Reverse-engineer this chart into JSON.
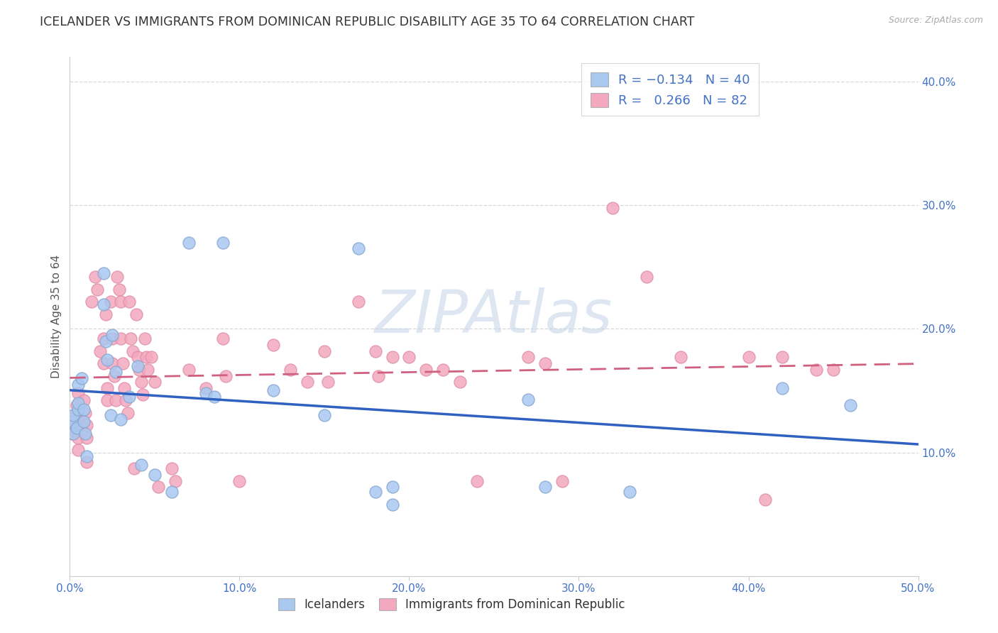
{
  "title": "ICELANDER VS IMMIGRANTS FROM DOMINICAN REPUBLIC DISABILITY AGE 35 TO 64 CORRELATION CHART",
  "source": "Source: ZipAtlas.com",
  "ylabel": "Disability Age 35 to 64",
  "xlim": [
    0.0,
    0.5
  ],
  "ylim": [
    0.0,
    0.42
  ],
  "xticks": [
    0.0,
    0.1,
    0.2,
    0.3,
    0.4,
    0.5
  ],
  "xticklabels": [
    "0.0%",
    "10.0%",
    "20.0%",
    "30.0%",
    "40.0%",
    "50.0%"
  ],
  "yticks": [
    0.0,
    0.1,
    0.2,
    0.3,
    0.4
  ],
  "yticklabels": [
    "",
    "10.0%",
    "20.0%",
    "30.0%",
    "40.0%"
  ],
  "iceland_R": -0.134,
  "iceland_N": 40,
  "domrep_R": 0.266,
  "domrep_N": 82,
  "iceland_color": "#a8c8f0",
  "domrep_color": "#f4a8c0",
  "iceland_line_color": "#3060c0",
  "domrep_line_color": "#d06080",
  "iceland_points": [
    [
      0.002,
      0.125
    ],
    [
      0.002,
      0.13
    ],
    [
      0.002,
      0.115
    ],
    [
      0.004,
      0.12
    ],
    [
      0.005,
      0.135
    ],
    [
      0.005,
      0.14
    ],
    [
      0.005,
      0.155
    ],
    [
      0.007,
      0.16
    ],
    [
      0.008,
      0.135
    ],
    [
      0.008,
      0.125
    ],
    [
      0.009,
      0.115
    ],
    [
      0.01,
      0.097
    ],
    [
      0.02,
      0.245
    ],
    [
      0.02,
      0.22
    ],
    [
      0.021,
      0.19
    ],
    [
      0.022,
      0.175
    ],
    [
      0.024,
      0.13
    ],
    [
      0.025,
      0.195
    ],
    [
      0.027,
      0.165
    ],
    [
      0.03,
      0.127
    ],
    [
      0.035,
      0.145
    ],
    [
      0.04,
      0.17
    ],
    [
      0.042,
      0.09
    ],
    [
      0.05,
      0.082
    ],
    [
      0.06,
      0.068
    ],
    [
      0.07,
      0.27
    ],
    [
      0.08,
      0.148
    ],
    [
      0.085,
      0.145
    ],
    [
      0.09,
      0.27
    ],
    [
      0.12,
      0.15
    ],
    [
      0.15,
      0.13
    ],
    [
      0.17,
      0.265
    ],
    [
      0.18,
      0.068
    ],
    [
      0.19,
      0.072
    ],
    [
      0.19,
      0.058
    ],
    [
      0.27,
      0.143
    ],
    [
      0.28,
      0.072
    ],
    [
      0.33,
      0.068
    ],
    [
      0.42,
      0.152
    ],
    [
      0.46,
      0.138
    ]
  ],
  "domrep_points": [
    [
      0.001,
      0.12
    ],
    [
      0.001,
      0.115
    ],
    [
      0.003,
      0.13
    ],
    [
      0.004,
      0.138
    ],
    [
      0.005,
      0.112
    ],
    [
      0.005,
      0.102
    ],
    [
      0.005,
      0.148
    ],
    [
      0.007,
      0.122
    ],
    [
      0.008,
      0.142
    ],
    [
      0.009,
      0.132
    ],
    [
      0.01,
      0.122
    ],
    [
      0.01,
      0.092
    ],
    [
      0.01,
      0.112
    ],
    [
      0.013,
      0.222
    ],
    [
      0.015,
      0.242
    ],
    [
      0.016,
      0.232
    ],
    [
      0.018,
      0.182
    ],
    [
      0.02,
      0.172
    ],
    [
      0.02,
      0.192
    ],
    [
      0.021,
      0.212
    ],
    [
      0.022,
      0.152
    ],
    [
      0.022,
      0.142
    ],
    [
      0.024,
      0.222
    ],
    [
      0.025,
      0.192
    ],
    [
      0.025,
      0.172
    ],
    [
      0.026,
      0.162
    ],
    [
      0.027,
      0.142
    ],
    [
      0.028,
      0.242
    ],
    [
      0.029,
      0.232
    ],
    [
      0.03,
      0.222
    ],
    [
      0.03,
      0.192
    ],
    [
      0.031,
      0.172
    ],
    [
      0.032,
      0.152
    ],
    [
      0.033,
      0.142
    ],
    [
      0.034,
      0.132
    ],
    [
      0.035,
      0.222
    ],
    [
      0.036,
      0.192
    ],
    [
      0.037,
      0.182
    ],
    [
      0.038,
      0.087
    ],
    [
      0.039,
      0.212
    ],
    [
      0.04,
      0.177
    ],
    [
      0.041,
      0.167
    ],
    [
      0.042,
      0.157
    ],
    [
      0.043,
      0.147
    ],
    [
      0.044,
      0.192
    ],
    [
      0.045,
      0.177
    ],
    [
      0.046,
      0.167
    ],
    [
      0.048,
      0.177
    ],
    [
      0.05,
      0.157
    ],
    [
      0.052,
      0.072
    ],
    [
      0.06,
      0.087
    ],
    [
      0.062,
      0.077
    ],
    [
      0.07,
      0.167
    ],
    [
      0.08,
      0.152
    ],
    [
      0.09,
      0.192
    ],
    [
      0.092,
      0.162
    ],
    [
      0.1,
      0.077
    ],
    [
      0.12,
      0.187
    ],
    [
      0.13,
      0.167
    ],
    [
      0.14,
      0.157
    ],
    [
      0.15,
      0.182
    ],
    [
      0.152,
      0.157
    ],
    [
      0.17,
      0.222
    ],
    [
      0.18,
      0.182
    ],
    [
      0.182,
      0.162
    ],
    [
      0.19,
      0.177
    ],
    [
      0.2,
      0.177
    ],
    [
      0.21,
      0.167
    ],
    [
      0.22,
      0.167
    ],
    [
      0.23,
      0.157
    ],
    [
      0.24,
      0.077
    ],
    [
      0.27,
      0.177
    ],
    [
      0.28,
      0.172
    ],
    [
      0.29,
      0.077
    ],
    [
      0.32,
      0.298
    ],
    [
      0.34,
      0.242
    ],
    [
      0.36,
      0.177
    ],
    [
      0.4,
      0.177
    ],
    [
      0.41,
      0.062
    ],
    [
      0.42,
      0.177
    ],
    [
      0.44,
      0.167
    ],
    [
      0.45,
      0.167
    ]
  ],
  "background_color": "#ffffff",
  "grid_color": "#d8d8d8",
  "title_fontsize": 12.5,
  "axis_label_fontsize": 11,
  "tick_fontsize": 11,
  "legend_fontsize": 13,
  "watermark_text": "ZIPAtlas",
  "watermark_color": "#c8d8e8",
  "watermark_alpha": 0.6
}
